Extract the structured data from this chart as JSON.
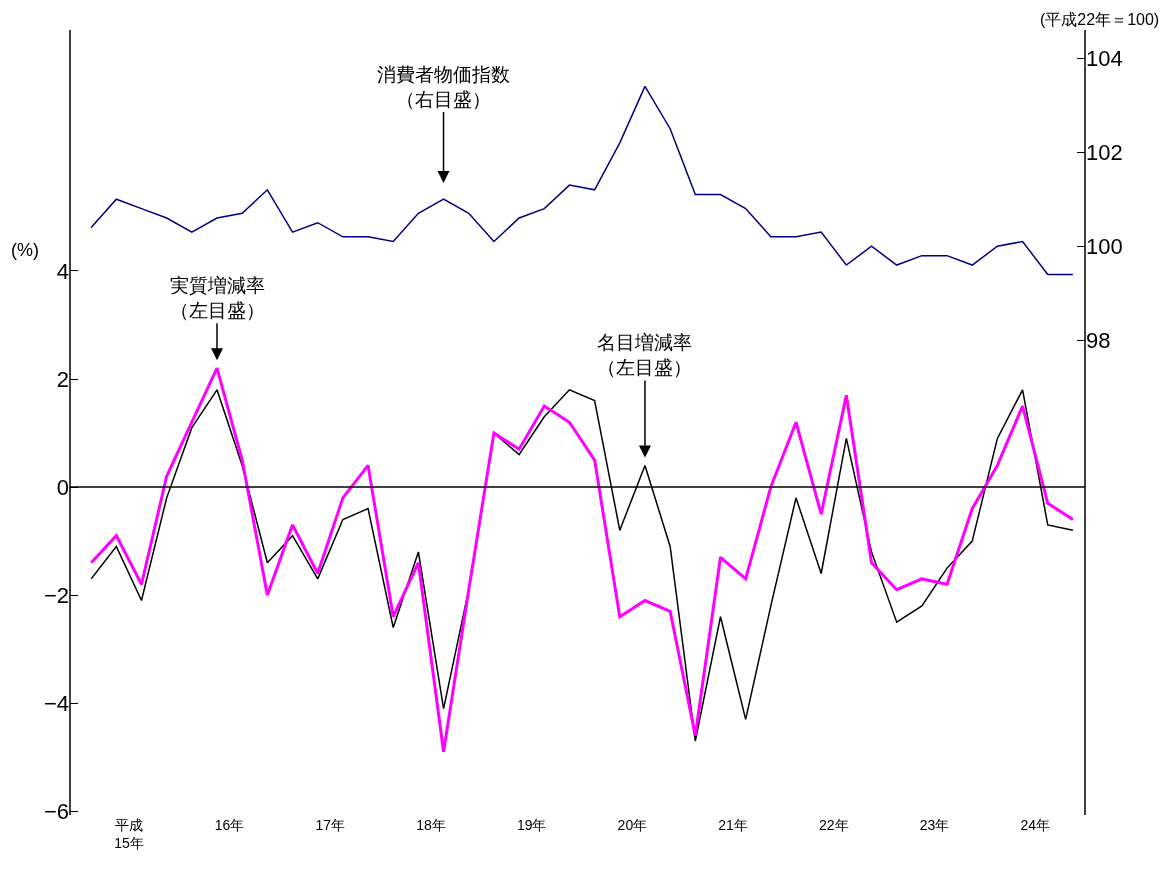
{
  "chart_data": {
    "type": "line",
    "x": [
      15.0,
      15.25,
      15.5,
      15.75,
      16.0,
      16.25,
      16.5,
      16.75,
      17.0,
      17.25,
      17.5,
      17.75,
      18.0,
      18.25,
      18.5,
      18.75,
      19.0,
      19.25,
      19.5,
      19.75,
      20.0,
      20.25,
      20.5,
      20.75,
      21.0,
      21.25,
      21.5,
      21.75,
      22.0,
      22.25,
      22.5,
      22.75,
      23.0,
      23.25,
      23.5,
      23.75,
      24.0,
      24.25,
      24.5,
      24.75
    ],
    "series": [
      {
        "color": "#000080",
        "axis": "y2",
        "values": [
          100.4,
          101.0,
          100.8,
          100.6,
          100.3,
          100.6,
          100.7,
          101.2,
          100.3,
          100.5,
          100.2,
          100.2,
          100.1,
          100.7,
          101.0,
          100.7,
          100.1,
          100.6,
          100.8,
          101.3,
          101.2,
          102.2,
          103.4,
          102.5,
          101.1,
          101.1,
          100.8,
          100.2,
          100.2,
          100.3,
          99.6,
          100.0,
          99.6,
          99.8,
          99.8,
          99.6,
          100.0,
          100.1,
          99.4,
          99.4
        ]
      },
      {
        "color": "#000000",
        "axis": "y",
        "values": [
          -1.7,
          -1.1,
          -2.1,
          -0.2,
          1.1,
          1.8,
          0.4,
          -1.4,
          -0.9,
          -1.7,
          -0.6,
          -0.4,
          -2.6,
          -1.2,
          -4.1,
          -1.9,
          1.0,
          0.6,
          1.3,
          1.8,
          1.6,
          -0.8,
          0.4,
          -1.1,
          -4.7,
          -2.4,
          -4.3,
          -2.2,
          -0.2,
          -1.6,
          0.9,
          -1.2,
          -2.5,
          -2.2,
          -1.5,
          -1.0,
          0.9,
          1.8,
          -0.7,
          -0.8
        ]
      },
      {
        "color": "#ff00ff",
        "axis": "y",
        "values": [
          -1.4,
          -0.9,
          -1.8,
          0.2,
          1.2,
          2.2,
          0.5,
          -2.0,
          -0.7,
          -1.6,
          -0.2,
          0.4,
          -2.4,
          -1.4,
          -4.9,
          -1.9,
          1.0,
          0.7,
          1.5,
          1.2,
          0.5,
          -2.4,
          -2.1,
          -2.3,
          -4.6,
          -1.3,
          -1.7,
          0.0,
          1.2,
          -0.5,
          1.7,
          -1.4,
          -1.9,
          -1.7,
          -1.8,
          -0.4,
          0.4,
          1.5,
          -0.3,
          -0.6
        ]
      }
    ],
    "ylabel": "(%)",
    "y2label": "(平成22年＝100)",
    "xlim": [
      14.79,
      24.87
    ],
    "xticks": [
      {
        "value": 15.375,
        "label": "平成15年"
      },
      {
        "value": 16.375,
        "label": "16年"
      },
      {
        "value": 17.375,
        "label": "17年"
      },
      {
        "value": 18.375,
        "label": "18年"
      },
      {
        "value": 19.375,
        "label": "19年"
      },
      {
        "value": 20.375,
        "label": "20年"
      },
      {
        "value": 21.375,
        "label": "21年"
      },
      {
        "value": 22.375,
        "label": "22年"
      },
      {
        "value": 23.375,
        "label": "23年"
      },
      {
        "value": 24.375,
        "label": "24年"
      }
    ],
    "ylim": [
      -6.07,
      8.46
    ],
    "yticks": [
      4,
      2,
      0,
      -2,
      -4,
      -6
    ],
    "y2lim": [
      87.9,
      104.6
    ],
    "y2ticks": [
      98,
      100,
      102,
      104
    ],
    "ref_lines": [
      {
        "axis": "y",
        "value": 0,
        "color": "#000000"
      }
    ],
    "annotations": [
      "消費者物価指数（右目盛）",
      {
        "text": "実質増減率（左目盛）",
        "x": 16.25,
        "y": 2.2
      },
      {
        "text": "名目増減率（左目盛）",
        "x": 20.5,
        "y": 0.4
      }
    ],
    "marker": "none",
    "line_style": "solid"
  }
}
